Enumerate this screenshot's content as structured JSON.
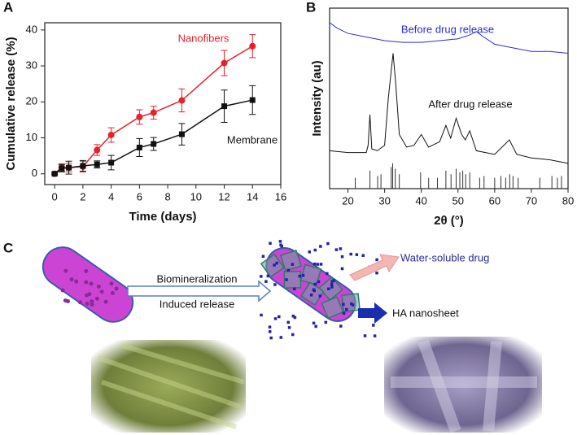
{
  "chart_data": [
    {
      "type": "line",
      "panel": "A",
      "xlabel": "Time (days)",
      "ylabel": "Cumulative release (%)",
      "x": [
        0,
        0.5,
        1,
        2,
        3,
        4,
        6,
        7,
        9,
        12,
        14
      ],
      "series": [
        {
          "name": "Nanofibers",
          "color": "#e8202a",
          "marker": "circle",
          "values": [
            0,
            1.8,
            1.7,
            2.0,
            6.6,
            10.8,
            15.8,
            17.0,
            20.4,
            30.8,
            35.5
          ],
          "errors": [
            0.3,
            1.0,
            1.2,
            1.5,
            1.5,
            2.0,
            2.0,
            1.8,
            3.2,
            3.5,
            3.2
          ]
        },
        {
          "name": "Membrane",
          "color": "#111111",
          "marker": "square",
          "values": [
            0,
            1.5,
            1.7,
            2.2,
            2.6,
            3.1,
            7.3,
            8.3,
            11.0,
            18.8,
            20.5
          ],
          "errors": [
            0.3,
            1.0,
            1.8,
            1.5,
            1.0,
            2.0,
            2.5,
            1.8,
            3.0,
            4.5,
            4.0
          ]
        }
      ],
      "xlim": [
        -0.7,
        16
      ],
      "xticks": [
        0,
        2,
        4,
        6,
        8,
        10,
        12,
        14,
        16
      ],
      "ylim": [
        -3,
        42
      ],
      "yticks": [
        0,
        10,
        20,
        30,
        40
      ]
    },
    {
      "type": "line",
      "panel": "B",
      "xlabel": "2θ (°)",
      "ylabel": "Intensity (au)",
      "series": [
        {
          "name": "Before drug release",
          "color": "#2a2ae0",
          "x": [
            15,
            17,
            20,
            25,
            30,
            35,
            40,
            45,
            50,
            53,
            55,
            57,
            60,
            65,
            70,
            75,
            80
          ],
          "values": [
            92,
            89,
            86,
            84,
            82,
            81,
            81,
            82,
            83,
            85,
            87,
            84,
            80,
            78,
            76,
            76,
            75
          ]
        },
        {
          "name": "After drug release",
          "color": "#111111",
          "x": [
            15,
            20,
            25,
            25.5,
            26,
            26.5,
            28,
            30,
            31,
            32.3,
            33,
            34,
            36,
            38,
            40,
            42,
            45,
            46.7,
            48,
            49.5,
            51,
            52,
            53.2,
            55,
            60,
            64,
            66,
            70,
            75,
            80
          ],
          "values": [
            21,
            20,
            20,
            24,
            41,
            22,
            21,
            24,
            50,
            75,
            59,
            30,
            23,
            24,
            30,
            23,
            26,
            35,
            28,
            39,
            30,
            27,
            32,
            21,
            19,
            27,
            19,
            17,
            16,
            14
          ]
        }
      ],
      "reference": {
        "color": "#333333",
        "x": [
          22,
          26,
          28.1,
          29,
          31.8,
          32.2,
          32.9,
          34,
          39.8,
          42,
          44.4,
          46.7,
          48.1,
          49.5,
          50.5,
          51.3,
          52.1,
          53.2,
          55.9,
          57.1,
          60,
          61.7,
          63,
          64.1,
          65,
          66.4,
          72.3,
          75.6,
          77.1,
          78.2
        ],
        "values": [
          6,
          10,
          7,
          8,
          12,
          14,
          11,
          8,
          9,
          6,
          6,
          10,
          8,
          11,
          9,
          10,
          8,
          9,
          6,
          7,
          6,
          7,
          6,
          8,
          7,
          6,
          6,
          7,
          6,
          7
        ]
      },
      "xlim": [
        15,
        80
      ],
      "xticks": [
        20,
        30,
        40,
        50,
        60,
        70,
        80
      ],
      "ylim": [
        0,
        100
      ]
    }
  ],
  "diagram": {
    "panel": "C",
    "arrow_top": "Biomineralization",
    "arrow_bottom": "Induced release",
    "drug_label": "Water-soluble drug",
    "sheet_label": "HA nanosheet"
  }
}
